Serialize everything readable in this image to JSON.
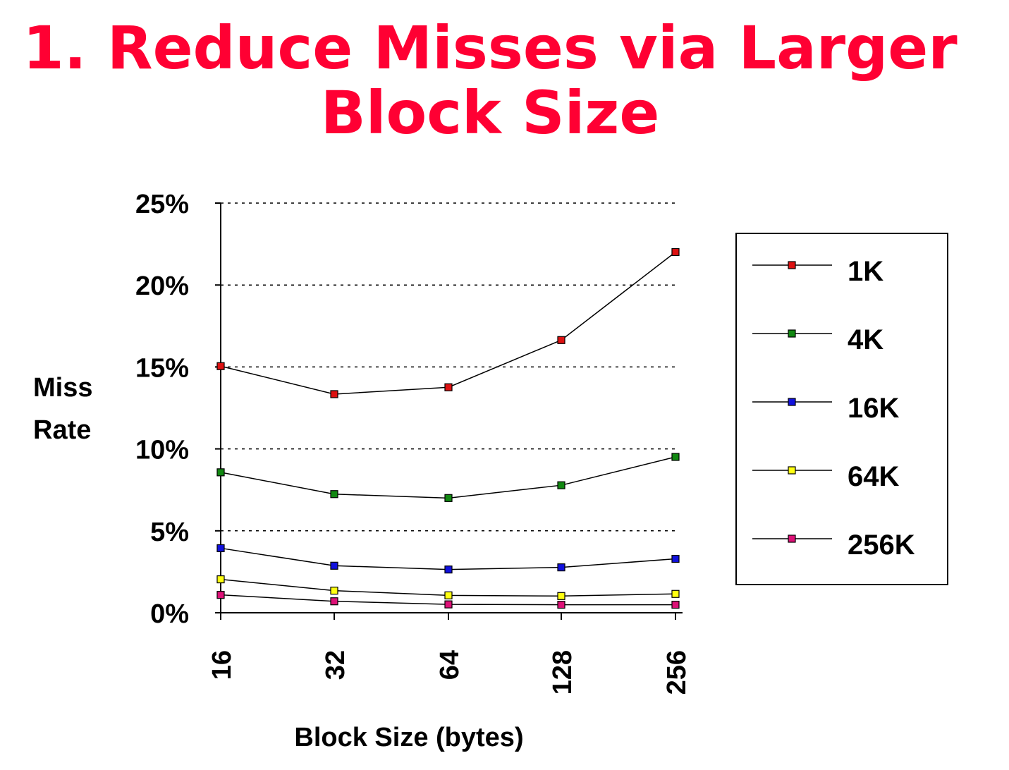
{
  "slide": {
    "title_line1": "1. Reduce Misses via Larger",
    "title_line2": "Block Size"
  },
  "chart_data": {
    "type": "line",
    "title": "",
    "xlabel": "Block Size (bytes)",
    "ylabel_line1": "Miss",
    "ylabel_line2": "Rate",
    "categories": [
      "16",
      "32",
      "64",
      "128",
      "256"
    ],
    "ylim": [
      0,
      25
    ],
    "yticks": [
      0,
      5,
      10,
      15,
      20,
      25
    ],
    "ytick_labels": [
      "0%",
      "5%",
      "10%",
      "15%",
      "20%",
      "25%"
    ],
    "grid": "horizontal-dotted",
    "legend_position": "right",
    "series": [
      {
        "name": "1K",
        "color": "#dd1111",
        "values": [
          15.05,
          13.34,
          13.76,
          16.64,
          22.01
        ]
      },
      {
        "name": "4K",
        "color": "#118811",
        "values": [
          8.57,
          7.24,
          7.0,
          7.78,
          9.51
        ]
      },
      {
        "name": "16K",
        "color": "#1111dd",
        "values": [
          3.94,
          2.87,
          2.64,
          2.77,
          3.29
        ]
      },
      {
        "name": "64K",
        "color": "#ffff11",
        "values": [
          2.04,
          1.35,
          1.06,
          1.02,
          1.15
        ]
      },
      {
        "name": "256K",
        "color": "#dd1177",
        "values": [
          1.09,
          0.7,
          0.51,
          0.49,
          0.49
        ]
      }
    ]
  }
}
